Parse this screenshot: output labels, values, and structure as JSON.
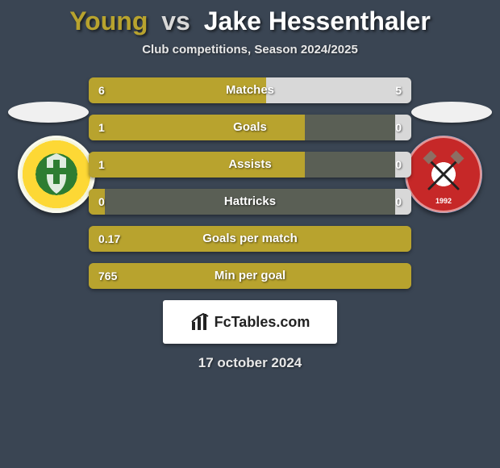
{
  "title": {
    "left": "Young",
    "vs": "vs",
    "right": "Jake Hessenthaler",
    "left_color": "#b8a32e",
    "vs_color": "#d8d8d8",
    "right_color": "#ffffff"
  },
  "subtitle": "Club competitions, Season 2024/2025",
  "bars": {
    "track_bg": "#5a5f55",
    "left_color": "#b8a32e",
    "right_color": "#d8d8d8",
    "label_color": "#ffffff",
    "items": [
      {
        "label": "Matches",
        "left": "6",
        "right": "5",
        "left_pct": 55,
        "right_pct": 45
      },
      {
        "label": "Goals",
        "left": "1",
        "right": "0",
        "left_pct": 67,
        "right_pct": 5
      },
      {
        "label": "Assists",
        "left": "1",
        "right": "0",
        "left_pct": 67,
        "right_pct": 5
      },
      {
        "label": "Hattricks",
        "left": "0",
        "right": "0",
        "left_pct": 5,
        "right_pct": 5
      },
      {
        "label": "Goals per match",
        "left": "0.17",
        "right": "",
        "left_pct": 100,
        "right_pct": 0
      },
      {
        "label": "Min per goal",
        "left": "765",
        "right": "",
        "left_pct": 100,
        "right_pct": 0
      }
    ]
  },
  "crests": {
    "left": {
      "outer": "#f5f5dc",
      "mid": "#fdd835",
      "inner": "#2e7d32"
    },
    "right": {
      "outer": "#1565c0",
      "mid": "#c62828",
      "inner": "#ffffff",
      "year": "1992"
    }
  },
  "logo": {
    "text": "FcTables.com"
  },
  "date": "17 october 2024",
  "bg_color": "#3a4553"
}
